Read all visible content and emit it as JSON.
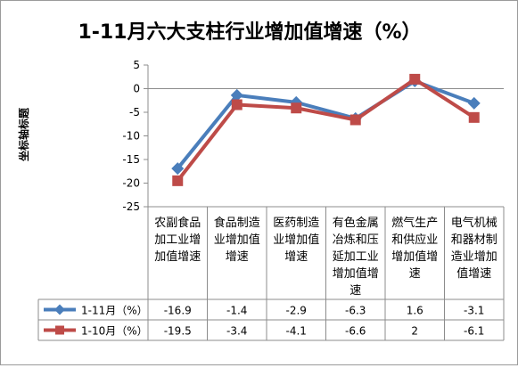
{
  "chart_data": {
    "type": "line",
    "title": "1-11月六大支柱行业增加值增速（%）",
    "ylabel": "坐标轴标题",
    "xlabel": "",
    "ylim": [
      -25,
      5
    ],
    "yticks": [
      5,
      0,
      -5,
      -10,
      -15,
      -20,
      -25
    ],
    "grid": false,
    "legend": "table",
    "categories": [
      [
        "农副食品",
        "加工业增",
        "加值增速"
      ],
      [
        "食品制造",
        "业增加值",
        "增速"
      ],
      [
        "医药制造",
        "业增加值",
        "增速"
      ],
      [
        "有色金属",
        "冶炼和压",
        "延加工业",
        "增加值增",
        "速"
      ],
      [
        "燃气生产",
        "和供应业",
        "增加值增",
        "速"
      ],
      [
        "电气机械",
        "和器材制",
        "造业增加",
        "值增速"
      ]
    ],
    "series": [
      {
        "name": "1-11月（%）",
        "values": [
          -16.9,
          -1.4,
          -2.9,
          -6.3,
          1.6,
          -3.1
        ],
        "color": "#4a7ebb",
        "marker": "diamond"
      },
      {
        "name": "1-10月（%）",
        "values": [
          -19.5,
          -3.4,
          -4.1,
          -6.6,
          2,
          -6.1
        ],
        "color": "#be4b48",
        "marker": "square"
      }
    ]
  }
}
